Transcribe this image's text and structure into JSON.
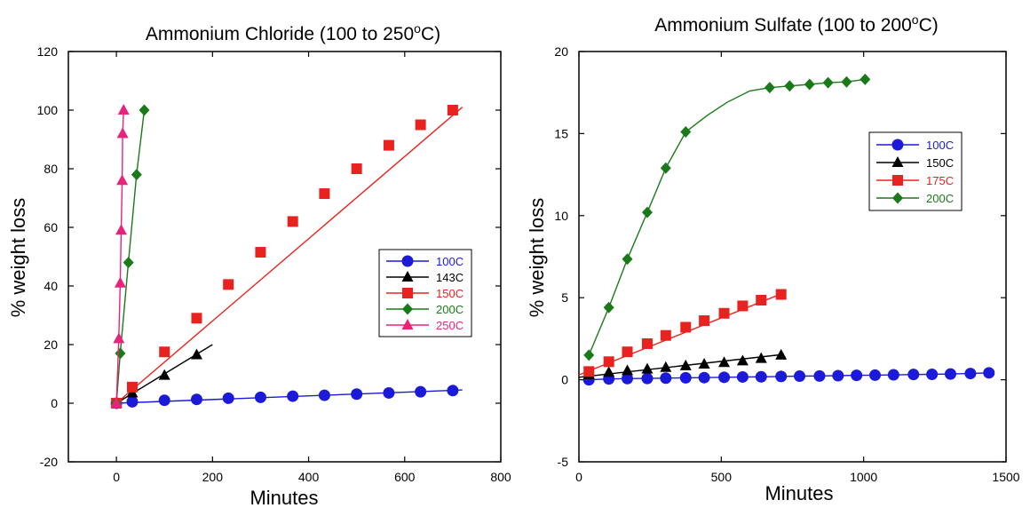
{
  "chart_data": [
    {
      "type": "line",
      "title": "Ammonium Chloride (100 to 250",
      "title_sup": "o",
      "title_end": "C)",
      "xlabel": "Minutes",
      "ylabel": "% weight loss",
      "xlim": [
        -100,
        800
      ],
      "ylim": [
        -20,
        120
      ],
      "xticks": [
        0,
        200,
        400,
        600,
        800
      ],
      "yticks": [
        -20,
        0,
        20,
        40,
        60,
        80,
        100,
        120
      ],
      "grid": false,
      "legend_position": "center-right",
      "series": [
        {
          "name": "100C",
          "color": "#1a1ad8",
          "marker": "circle",
          "x": [
            0,
            33,
            100,
            167,
            233,
            300,
            367,
            433,
            500,
            567,
            633,
            700
          ],
          "y": [
            0,
            0.5,
            1,
            1.3,
            1.7,
            2,
            2.4,
            2.7,
            3.1,
            3.5,
            3.9,
            4.3
          ],
          "line_x": [
            0,
            720
          ],
          "line_y": [
            0,
            4.5
          ]
        },
        {
          "name": "143C",
          "color": "#000000",
          "marker": "triangle",
          "x": [
            0,
            33,
            100,
            167
          ],
          "y": [
            0,
            3.5,
            9.5,
            16.5
          ],
          "line_x": [
            0,
            200
          ],
          "line_y": [
            0,
            20
          ]
        },
        {
          "name": "150C",
          "color": "#e8231f",
          "marker": "square",
          "x": [
            0,
            33,
            100,
            167,
            233,
            300,
            367,
            433,
            500,
            567,
            633,
            700
          ],
          "y": [
            0,
            5.5,
            17.5,
            29,
            40.5,
            51.5,
            62,
            71.5,
            80,
            88,
            95,
            100
          ],
          "line_x": [
            0,
            720
          ],
          "line_y": [
            0,
            101
          ]
        },
        {
          "name": "200C",
          "color": "#1a7a1a",
          "marker": "diamond",
          "x": [
            0,
            8,
            25,
            42,
            58
          ],
          "y": [
            0,
            17,
            48,
            78,
            100
          ]
        },
        {
          "name": "250C",
          "color": "#e8247a",
          "marker": "triangle",
          "x": [
            0,
            5,
            8,
            10,
            12,
            13,
            15
          ],
          "y": [
            0,
            22,
            41,
            59,
            76,
            92,
            100
          ]
        }
      ]
    },
    {
      "type": "line",
      "title": "Ammonium Sulfate (100 to 200",
      "title_sup": "o",
      "title_end": "C)",
      "xlabel": "Minutes",
      "ylabel": "% weight loss",
      "xlim": [
        0,
        1500
      ],
      "ylim": [
        -5,
        20
      ],
      "xticks": [
        0,
        500,
        1000,
        1500
      ],
      "yticks": [
        -5,
        0,
        5,
        10,
        15,
        20
      ],
      "grid": false,
      "legend_position": "upper-right",
      "series": [
        {
          "name": "100C",
          "color": "#1a1ad8",
          "marker": "circle",
          "x": [
            35,
            105,
            170,
            240,
            305,
            375,
            440,
            510,
            575,
            640,
            710,
            775,
            845,
            910,
            975,
            1040,
            1105,
            1175,
            1240,
            1305,
            1375,
            1440
          ],
          "y": [
            0,
            0.05,
            0.07,
            0.08,
            0.1,
            0.12,
            0.13,
            0.15,
            0.17,
            0.18,
            0.2,
            0.22,
            0.23,
            0.25,
            0.27,
            0.28,
            0.3,
            0.32,
            0.33,
            0.35,
            0.38,
            0.42
          ]
        },
        {
          "name": "150C",
          "color": "#000000",
          "marker": "triangle",
          "x": [
            35,
            105,
            170,
            240,
            305,
            375,
            440,
            510,
            575,
            640,
            710
          ],
          "y": [
            0.3,
            0.45,
            0.55,
            0.65,
            0.75,
            0.85,
            0.95,
            1.05,
            1.15,
            1.3,
            1.5
          ],
          "line_x": [
            0,
            720
          ],
          "line_y": [
            0.15,
            1.55
          ]
        },
        {
          "name": "175C",
          "color": "#e8231f",
          "marker": "square",
          "x": [
            35,
            105,
            170,
            240,
            305,
            375,
            440,
            510,
            575,
            640,
            710
          ],
          "y": [
            0.5,
            1.1,
            1.7,
            2.2,
            2.7,
            3.2,
            3.6,
            4.05,
            4.5,
            4.85,
            5.2
          ],
          "line_x": [
            0,
            720
          ],
          "line_y": [
            0.3,
            5.3
          ]
        },
        {
          "name": "200C",
          "color": "#1a7a1a",
          "marker": "diamond",
          "x": [
            35,
            105,
            170,
            240,
            305,
            375,
            670,
            740,
            810,
            875,
            940,
            1005
          ],
          "y": [
            1.5,
            4.4,
            7.35,
            10.2,
            12.9,
            15.1,
            17.8,
            17.9,
            18,
            18.1,
            18.15,
            18.3
          ],
          "line_x": [
            35,
            105,
            170,
            240,
            305,
            375,
            450,
            520,
            600,
            670,
            740,
            810,
            875,
            940,
            1005
          ],
          "line_y": [
            1.5,
            4.4,
            7.35,
            10.2,
            12.9,
            15.1,
            16.1,
            16.9,
            17.6,
            17.8,
            17.9,
            18,
            18.1,
            18.15,
            18.3
          ]
        }
      ]
    }
  ]
}
